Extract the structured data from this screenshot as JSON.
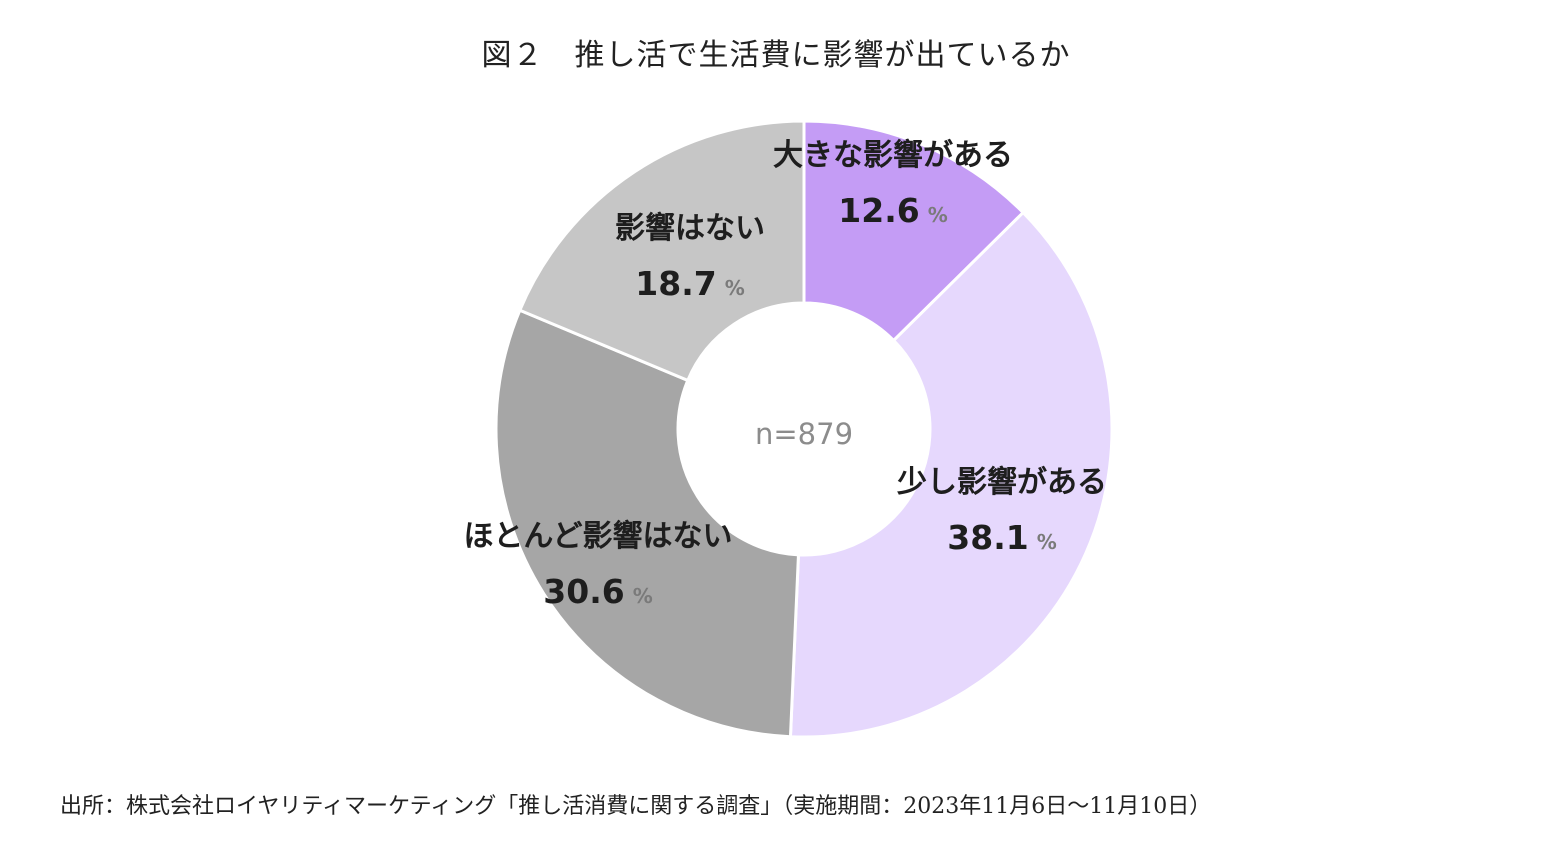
{
  "title": "図２　推し活で生活費に影響が出ているか",
  "source": "出所：株式会社ロイヤリティマーケティング「推し活消費に関する調査」（実施期間：2023年11月6日～11月10日）",
  "chart_data": {
    "type": "pie",
    "style": "donut",
    "title": "図２　推し活で生活費に影響が出ているか",
    "center_label": "n=879",
    "unit": "%",
    "start": "top, clockwise",
    "slices": [
      {
        "label": "大きな影響がある",
        "value": 12.6,
        "display": "12.6",
        "color": "#c49cf5"
      },
      {
        "label": "少し影響がある",
        "value": 38.1,
        "display": "38.1",
        "color": "#e6d8fd"
      },
      {
        "label": "ほとんど影響はない",
        "value": 30.6,
        "display": "30.6",
        "color": "#a6a6a6"
      },
      {
        "label": "影響はない",
        "value": 18.7,
        "display": "18.7",
        "color": "#c6c6c6"
      }
    ]
  }
}
